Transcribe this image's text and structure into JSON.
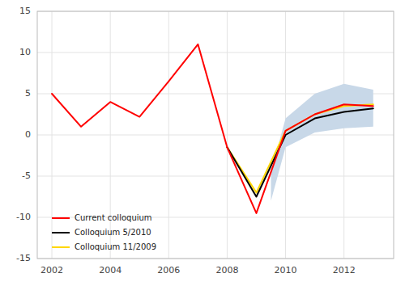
{
  "chart_data": {
    "type": "line",
    "series": [
      {
        "name": "Current colloquium",
        "color": "#ff0000",
        "x": [
          2002,
          2003,
          2004,
          2005,
          2006,
          2007,
          2008,
          2009,
          2010,
          2011,
          2012,
          2013
        ],
        "values": [
          5.0,
          1.0,
          4.0,
          2.2,
          6.5,
          11.0,
          -1.5,
          -9.5,
          0.5,
          2.5,
          3.7,
          3.5
        ]
      },
      {
        "name": "Colloquium 5/2010",
        "color": "#000000",
        "x": [
          2008,
          2009,
          2010,
          2011,
          2012,
          2013
        ],
        "values": [
          -1.5,
          -7.5,
          0.0,
          2.0,
          2.8,
          3.2
        ]
      },
      {
        "name": "Colloquium 11/2009",
        "color": "#ffd700",
        "x": [
          2008,
          2009,
          2010,
          2011,
          2012,
          2013
        ],
        "values": [
          -1.5,
          -7.0,
          0.5,
          2.5,
          3.5,
          3.7
        ]
      }
    ],
    "band": {
      "x": [
        2009.5,
        2010,
        2011,
        2012,
        2013
      ],
      "upper": [
        -4.5,
        2.0,
        5.0,
        6.2,
        5.5
      ],
      "lower": [
        -8.0,
        -1.5,
        0.3,
        0.8,
        1.0
      ],
      "color": "#c8d8e8"
    },
    "xlim": [
      2001.5,
      2013.7
    ],
    "ylim": [
      -15,
      15
    ],
    "xticks": [
      2002,
      2004,
      2006,
      2008,
      2010,
      2012
    ],
    "yticks": [
      -15,
      -10,
      -5,
      0,
      5,
      10,
      15
    ],
    "grid": true,
    "legend": "lower-left"
  }
}
